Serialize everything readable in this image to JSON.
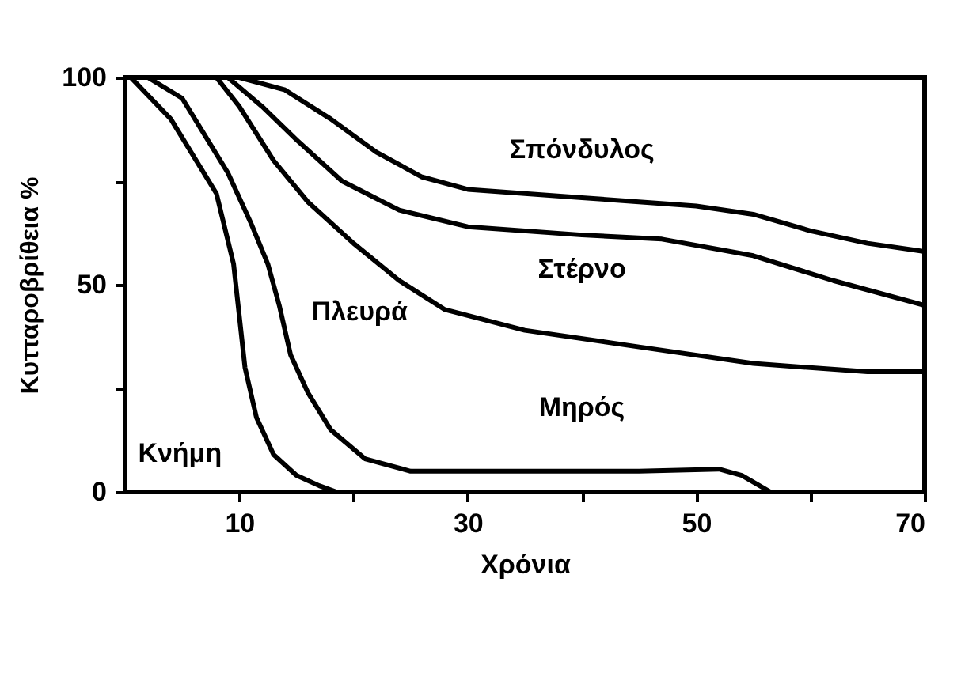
{
  "chart_data": {
    "type": "line",
    "xlabel": "Χρόνια",
    "ylabel": "Κυτταροβρίθεια %",
    "xlim": [
      0,
      70
    ],
    "ylim": [
      0,
      100
    ],
    "xticks": [
      10,
      {
        "value": 20,
        "label": null
      },
      30,
      {
        "value": 40,
        "label": null
      },
      50,
      {
        "value": 60,
        "label": null
      },
      70
    ],
    "yticks": [
      0,
      {
        "value": 25,
        "label": null
      },
      50,
      {
        "value": 75,
        "label": null
      },
      100
    ],
    "grid": false,
    "marker": "none",
    "line_style": "solid",
    "series": [
      {
        "name": "Σπόνδυλος",
        "color": "#000000",
        "x": [
          10,
          14,
          18,
          22,
          26,
          30,
          40,
          50,
          55,
          60,
          65,
          70
        ],
        "values": [
          100,
          97,
          90,
          82,
          76,
          73,
          71,
          69,
          67,
          63,
          60,
          58
        ]
      },
      {
        "name": "Στέρνο",
        "color": "#000000",
        "x": [
          9,
          12,
          15,
          19,
          24,
          30,
          40,
          47,
          55,
          62,
          70
        ],
        "values": [
          100,
          93,
          85,
          75,
          68,
          64,
          62,
          61,
          57,
          51,
          45
        ]
      },
      {
        "name": "Πλευρά",
        "color": "#000000",
        "x": [
          8,
          10,
          13,
          16,
          20,
          24,
          28,
          35,
          45,
          55,
          65,
          70
        ],
        "values": [
          100,
          93,
          80,
          70,
          60,
          51,
          44,
          39,
          35,
          31,
          29,
          29
        ]
      },
      {
        "name": "Μηρός",
        "color": "#000000",
        "x": [
          2,
          5,
          9,
          11,
          12.5,
          13.5,
          14.5,
          16,
          18,
          21,
          25,
          35,
          45,
          52,
          54,
          56.5,
          70
        ],
        "values": [
          100,
          95,
          77,
          65,
          55,
          45,
          33,
          24,
          15,
          8,
          5,
          5,
          5,
          5.5,
          4,
          0,
          0
        ]
      },
      {
        "name": "Κνήμη",
        "color": "#000000",
        "x": [
          0.5,
          4,
          8,
          9.5,
          10.5,
          11.5,
          13,
          15,
          17,
          18.5
        ],
        "values": [
          100,
          90,
          72,
          55,
          30,
          18,
          9,
          4,
          1.5,
          0
        ]
      }
    ]
  }
}
